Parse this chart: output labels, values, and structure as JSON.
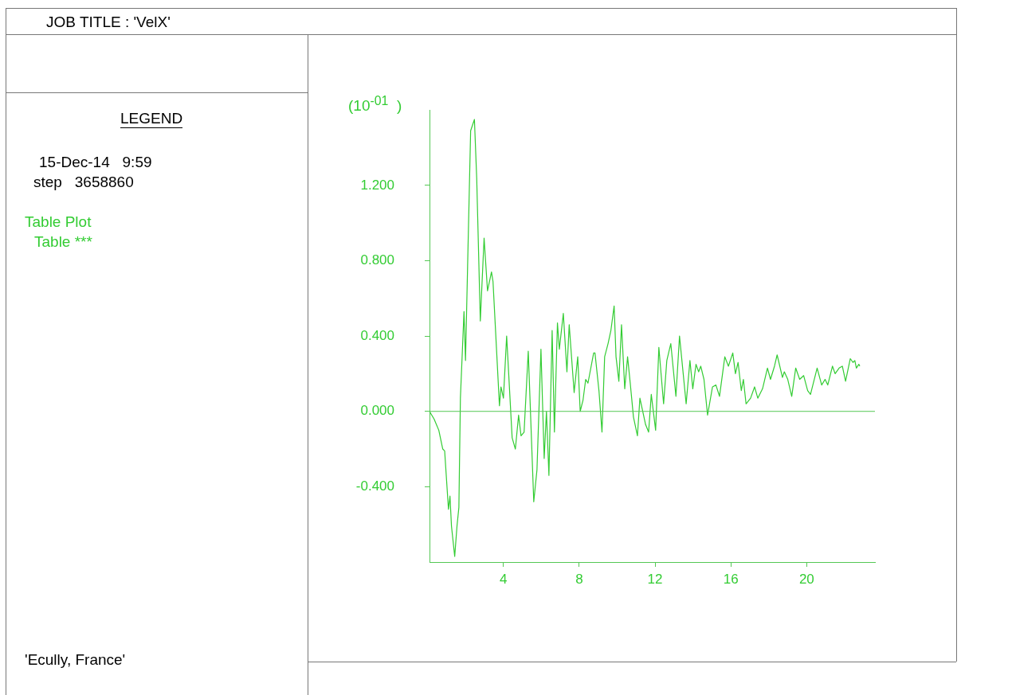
{
  "chart_data": {
    "type": "line",
    "title": "JOB TITLE : 'VelX'",
    "legend_title": "LEGEND",
    "ylabel": "(10$^{-01}$  )",
    "annotations": [
      "15-Dec-14   9:59",
      "step   3658860",
      "Table Plot",
      "'Ecully, France'"
    ],
    "legend": "left",
    "marker": "none",
    "line_style": "solid",
    "grid": false,
    "xlim": [
      0.1,
      23.6
    ],
    "xticks": [
      4,
      8,
      12,
      16,
      20
    ],
    "ylim": [
      -0.8,
      1.6
    ],
    "yticks": [
      {
        "value": -0.4,
        "label": "-0.400"
      },
      {
        "value": 0,
        "label": "0.000"
      },
      {
        "value": 0.4,
        "label": "0.400"
      },
      {
        "value": 0.8,
        "label": "0.800"
      },
      {
        "value": 1.2,
        "label": "1.200"
      }
    ],
    "ref_lines": [
      {
        "axis": "y",
        "value": 0,
        "color": "#55c855"
      }
    ],
    "series": [
      {
        "name": "Table ***",
        "color": "#33cc33",
        "x": [
          0.1,
          0.34,
          0.59,
          0.8,
          0.9,
          1.1,
          1.18,
          1.26,
          1.43,
          1.55,
          1.65,
          1.73,
          1.92,
          2.0,
          2.11,
          2.27,
          2.47,
          2.59,
          2.78,
          2.98,
          3.16,
          3.37,
          3.45,
          3.79,
          3.87,
          4.0,
          4.17,
          4.46,
          4.63,
          4.8,
          4.93,
          5.09,
          5.31,
          5.6,
          5.77,
          5.98,
          6.15,
          6.27,
          6.4,
          6.57,
          6.69,
          6.85,
          6.95,
          7.16,
          7.35,
          7.47,
          7.73,
          7.92,
          8.05,
          8.2,
          8.34,
          8.46,
          8.76,
          8.83,
          9.04,
          9.2,
          9.34,
          9.52,
          9.67,
          9.84,
          9.94,
          10.09,
          10.23,
          10.4,
          10.55,
          10.69,
          10.86,
          11.07,
          11.2,
          11.5,
          11.66,
          11.8,
          12.03,
          12.2,
          12.45,
          12.62,
          12.83,
          13.1,
          13.29,
          13.64,
          13.84,
          13.99,
          14.16,
          14.3,
          14.41,
          14.58,
          14.77,
          15.03,
          15.21,
          15.4,
          15.68,
          15.87,
          16.1,
          16.24,
          16.38,
          16.55,
          16.66,
          16.8,
          17.04,
          17.25,
          17.42,
          17.67,
          17.93,
          18.09,
          18.3,
          18.44,
          18.72,
          18.82,
          19.0,
          19.21,
          19.42,
          19.63,
          19.84,
          20.05,
          20.2,
          20.55,
          20.79,
          20.97,
          21.11,
          21.36,
          21.5,
          21.71,
          21.88,
          22.05,
          22.3,
          22.44,
          22.54,
          22.62,
          22.75,
          22.8
        ],
        "values": [
          0.0,
          -0.04,
          -0.1,
          -0.2,
          -0.21,
          -0.52,
          -0.45,
          -0.61,
          -0.77,
          -0.61,
          -0.51,
          0.07,
          0.53,
          0.27,
          0.77,
          1.49,
          1.55,
          1.24,
          0.48,
          0.92,
          0.64,
          0.74,
          0.69,
          0.03,
          0.13,
          0.07,
          0.4,
          -0.14,
          -0.2,
          -0.02,
          -0.13,
          -0.11,
          0.32,
          -0.48,
          -0.31,
          0.33,
          -0.25,
          0.0,
          -0.34,
          0.43,
          -0.11,
          0.47,
          0.33,
          0.52,
          0.21,
          0.46,
          0.1,
          0.29,
          0.0,
          0.06,
          0.17,
          0.15,
          0.31,
          0.31,
          0.11,
          -0.11,
          0.29,
          0.36,
          0.43,
          0.56,
          0.29,
          0.16,
          0.46,
          0.12,
          0.29,
          0.15,
          -0.03,
          -0.13,
          0.07,
          -0.07,
          -0.11,
          0.09,
          -0.1,
          0.34,
          0.04,
          0.27,
          0.36,
          0.08,
          0.4,
          0.04,
          0.27,
          0.12,
          0.25,
          0.21,
          0.24,
          0.17,
          -0.02,
          0.13,
          0.14,
          0.08,
          0.29,
          0.24,
          0.31,
          0.2,
          0.26,
          0.11,
          0.17,
          0.04,
          0.07,
          0.13,
          0.07,
          0.12,
          0.23,
          0.17,
          0.24,
          0.3,
          0.18,
          0.21,
          0.17,
          0.08,
          0.23,
          0.17,
          0.19,
          0.11,
          0.09,
          0.23,
          0.14,
          0.17,
          0.14,
          0.24,
          0.2,
          0.23,
          0.24,
          0.16,
          0.28,
          0.26,
          0.27,
          0.23,
          0.25,
          0.24
        ]
      }
    ]
  }
}
